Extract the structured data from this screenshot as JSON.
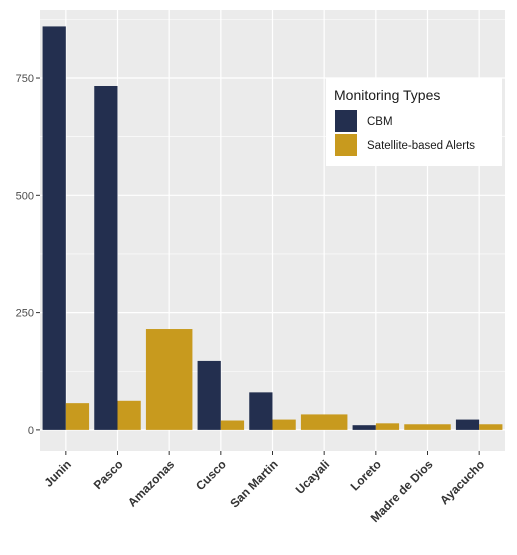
{
  "chart_data": {
    "type": "bar",
    "categories": [
      "Junin",
      "Pasco",
      "Amazonas",
      "Cusco",
      "San Martin",
      "Ucayali",
      "Loreto",
      "Madre de Dios",
      "Ayacucho"
    ],
    "series": [
      {
        "name": "CBM",
        "values": [
          860,
          733,
          0,
          147,
          80,
          0,
          10,
          0,
          22
        ],
        "color": "#232f4f"
      },
      {
        "name": "Satellite-based Alerts",
        "values": [
          57,
          62,
          215,
          20,
          22,
          33,
          14,
          12,
          12
        ],
        "color": "#c89a1e"
      }
    ],
    "legend": {
      "title": "Monitoring Types",
      "position": "top-right"
    },
    "yticks": [
      0,
      250,
      500,
      750
    ],
    "ylim": [
      -45,
      895
    ],
    "grid": true,
    "panel_background": "#ebebeb",
    "grid_color": "#ffffff"
  }
}
